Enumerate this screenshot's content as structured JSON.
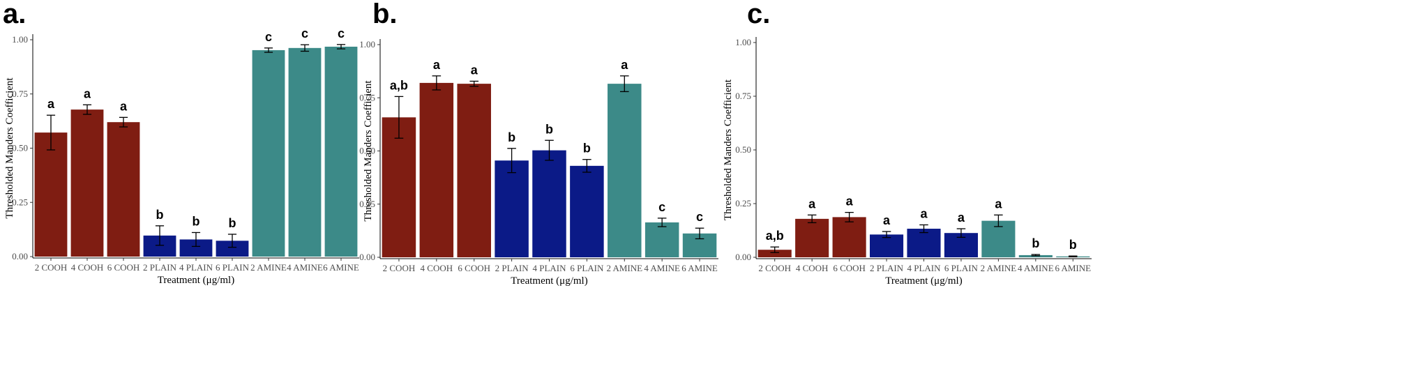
{
  "colors": {
    "cooh": "#7f1d12",
    "plain": "#0b1a87",
    "amine": "#3c8a88",
    "errorbar": "#000000",
    "axis": "#000000"
  },
  "chart_data": [
    {
      "type": "bar",
      "panel_label": "a.",
      "categories": [
        "2 COOH",
        "4 COOH",
        "6 COOH",
        "2 PLAIN",
        "4 PLAIN",
        "6 PLAIN",
        "2 AMINE",
        "4 AMINE",
        "6 AMINE"
      ],
      "groups": [
        "cooh",
        "cooh",
        "cooh",
        "plain",
        "plain",
        "plain",
        "amine",
        "amine",
        "amine"
      ],
      "values": [
        0.572,
        0.678,
        0.62,
        0.097,
        0.079,
        0.073,
        0.952,
        0.962,
        0.968
      ],
      "errors": [
        0.08,
        0.022,
        0.022,
        0.045,
        0.032,
        0.03,
        0.01,
        0.015,
        0.01
      ],
      "significance": [
        "a",
        "a",
        "a",
        "b",
        "b",
        "b",
        "c",
        "c",
        "c"
      ],
      "xlabel": "Treatment (μg/ml)",
      "ylabel": "Thresholded Manders Coefficient",
      "yticks": [
        "0.00",
        "0.25",
        "0.50",
        "0.75",
        "1.00"
      ],
      "ylim": [
        0,
        1.0
      ],
      "grid": false
    },
    {
      "type": "bar",
      "panel_label": "b.",
      "categories": [
        "2 COOH",
        "4 COOH",
        "6 COOH",
        "2 PLAIN",
        "4 PLAIN",
        "6 PLAIN",
        "2 AMINE",
        "4 AMINE",
        "6 AMINE"
      ],
      "groups": [
        "cooh",
        "cooh",
        "cooh",
        "plain",
        "plain",
        "plain",
        "amine",
        "amine",
        "amine"
      ],
      "values": [
        0.658,
        0.82,
        0.816,
        0.455,
        0.503,
        0.43,
        0.816,
        0.164,
        0.112
      ],
      "errors": [
        0.098,
        0.033,
        0.012,
        0.057,
        0.047,
        0.03,
        0.037,
        0.02,
        0.025
      ],
      "significance": [
        "a,b",
        "a",
        "a",
        "b",
        "b",
        "b",
        "a",
        "c",
        "c"
      ],
      "xlabel": "Treatment (μg/ml)",
      "ylabel": "Thresholded Manders Coefficient",
      "yticks": [
        "0.00",
        "0.25",
        "0.50",
        "0.75",
        "1.00"
      ],
      "ylim": [
        0,
        1.0
      ],
      "grid": false
    },
    {
      "type": "bar",
      "panel_label": "c.",
      "categories": [
        "2 COOH",
        "4 COOH",
        "6 COOH",
        "2 PLAIN",
        "4 PLAIN",
        "6 PLAIN",
        "2 AMINE",
        "4 AMINE",
        "6 AMINE"
      ],
      "groups": [
        "cooh",
        "cooh",
        "cooh",
        "plain",
        "plain",
        "plain",
        "amine",
        "amine",
        "amine"
      ],
      "values": [
        0.035,
        0.179,
        0.187,
        0.106,
        0.133,
        0.113,
        0.17,
        0.01,
        0.004
      ],
      "errors": [
        0.013,
        0.018,
        0.022,
        0.014,
        0.018,
        0.02,
        0.027,
        0.003,
        0.002
      ],
      "significance": [
        "a,b",
        "a",
        "a",
        "a",
        "a",
        "a",
        "a",
        "b",
        "b"
      ],
      "xlabel": "Treatment (μg/ml)",
      "ylabel": "Thresholded Manders Coefficient",
      "yticks": [
        "0.00",
        "0.25",
        "0.50",
        "0.75",
        "1.00"
      ],
      "ylim": [
        0,
        1.0
      ],
      "grid": false
    }
  ]
}
